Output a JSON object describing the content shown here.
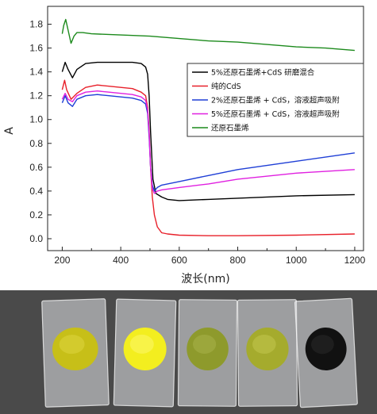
{
  "chart_data": {
    "type": "line",
    "xlabel": "波长(nm)",
    "ylabel": "A",
    "xlim": [
      150,
      1230
    ],
    "ylim": [
      -0.1,
      1.95
    ],
    "x_ticks": [
      "200",
      "400",
      "600",
      "800",
      "1000",
      "1200"
    ],
    "y_ticks": [
      "0.0",
      "0.2",
      "0.4",
      "0.6",
      "0.8",
      "1.0",
      "1.2",
      "1.4",
      "1.6",
      "1.8"
    ],
    "grid": false,
    "legend_position": "right, inside plot",
    "series": [
      {
        "name": "5%还原石墨烯+CdS 研磨混合",
        "color": "#000000",
        "x": [
          200,
          210,
          220,
          235,
          250,
          280,
          320,
          360,
          400,
          440,
          470,
          485,
          492,
          497,
          502,
          510,
          520,
          540,
          560,
          600,
          700,
          800,
          1000,
          1200
        ],
        "y": [
          1.4,
          1.48,
          1.42,
          1.35,
          1.42,
          1.47,
          1.48,
          1.48,
          1.48,
          1.48,
          1.47,
          1.44,
          1.38,
          1.2,
          0.9,
          0.5,
          0.38,
          0.35,
          0.33,
          0.32,
          0.33,
          0.34,
          0.36,
          0.37
        ]
      },
      {
        "name": "纯的CdS",
        "color": "#e8202a",
        "x": [
          200,
          208,
          215,
          230,
          250,
          280,
          320,
          360,
          400,
          440,
          470,
          485,
          492,
          497,
          502,
          508,
          515,
          525,
          540,
          560,
          600,
          700,
          800,
          1000,
          1200
        ],
        "y": [
          1.25,
          1.33,
          1.25,
          1.17,
          1.22,
          1.27,
          1.29,
          1.28,
          1.27,
          1.26,
          1.23,
          1.2,
          1.1,
          0.9,
          0.6,
          0.35,
          0.2,
          0.1,
          0.05,
          0.04,
          0.03,
          0.025,
          0.025,
          0.03,
          0.04
        ]
      },
      {
        "name": "2%还原石墨烯 + CdS，溶液超声吸附",
        "color": "#1f3fd6",
        "x": [
          200,
          210,
          220,
          235,
          250,
          280,
          320,
          360,
          400,
          440,
          470,
          485,
          492,
          497,
          502,
          508,
          515,
          525,
          540,
          600,
          700,
          800,
          1000,
          1200
        ],
        "y": [
          1.14,
          1.2,
          1.14,
          1.11,
          1.17,
          1.2,
          1.21,
          1.2,
          1.19,
          1.18,
          1.16,
          1.13,
          1.05,
          0.85,
          0.6,
          0.45,
          0.4,
          0.43,
          0.45,
          0.48,
          0.53,
          0.58,
          0.65,
          0.72
        ]
      },
      {
        "name": "5%还原石墨烯 + CdS，溶液超声吸附",
        "color": "#e020e0",
        "x": [
          200,
          210,
          220,
          235,
          250,
          280,
          320,
          360,
          400,
          440,
          470,
          485,
          492,
          497,
          502,
          508,
          515,
          525,
          540,
          600,
          700,
          800,
          1000,
          1200
        ],
        "y": [
          1.17,
          1.22,
          1.17,
          1.15,
          1.2,
          1.23,
          1.24,
          1.23,
          1.22,
          1.21,
          1.19,
          1.16,
          1.08,
          0.88,
          0.6,
          0.42,
          0.38,
          0.4,
          0.41,
          0.43,
          0.46,
          0.5,
          0.55,
          0.58
        ]
      },
      {
        "name": "还原石墨烯",
        "color": "#1c8a1c",
        "x": [
          200,
          205,
          212,
          220,
          230,
          240,
          250,
          270,
          300,
          400,
          500,
          600,
          700,
          800,
          900,
          1000,
          1100,
          1200
        ],
        "y": [
          1.72,
          1.79,
          1.84,
          1.75,
          1.64,
          1.7,
          1.73,
          1.73,
          1.72,
          1.71,
          1.7,
          1.68,
          1.66,
          1.65,
          1.63,
          1.61,
          1.6,
          1.58
        ]
      }
    ]
  },
  "photo": {
    "background": "#4a4a4a",
    "samples": [
      {
        "color": "#c7bf18",
        "highlight": "#ddd640"
      },
      {
        "color": "#f3ee1f",
        "highlight": "#fbf76a"
      },
      {
        "color": "#8e9a2c",
        "highlight": "#a7b24a"
      },
      {
        "color": "#a5ab2d",
        "highlight": "#c2c64e"
      },
      {
        "color": "#111111",
        "highlight": "#2a2a2a"
      }
    ]
  }
}
